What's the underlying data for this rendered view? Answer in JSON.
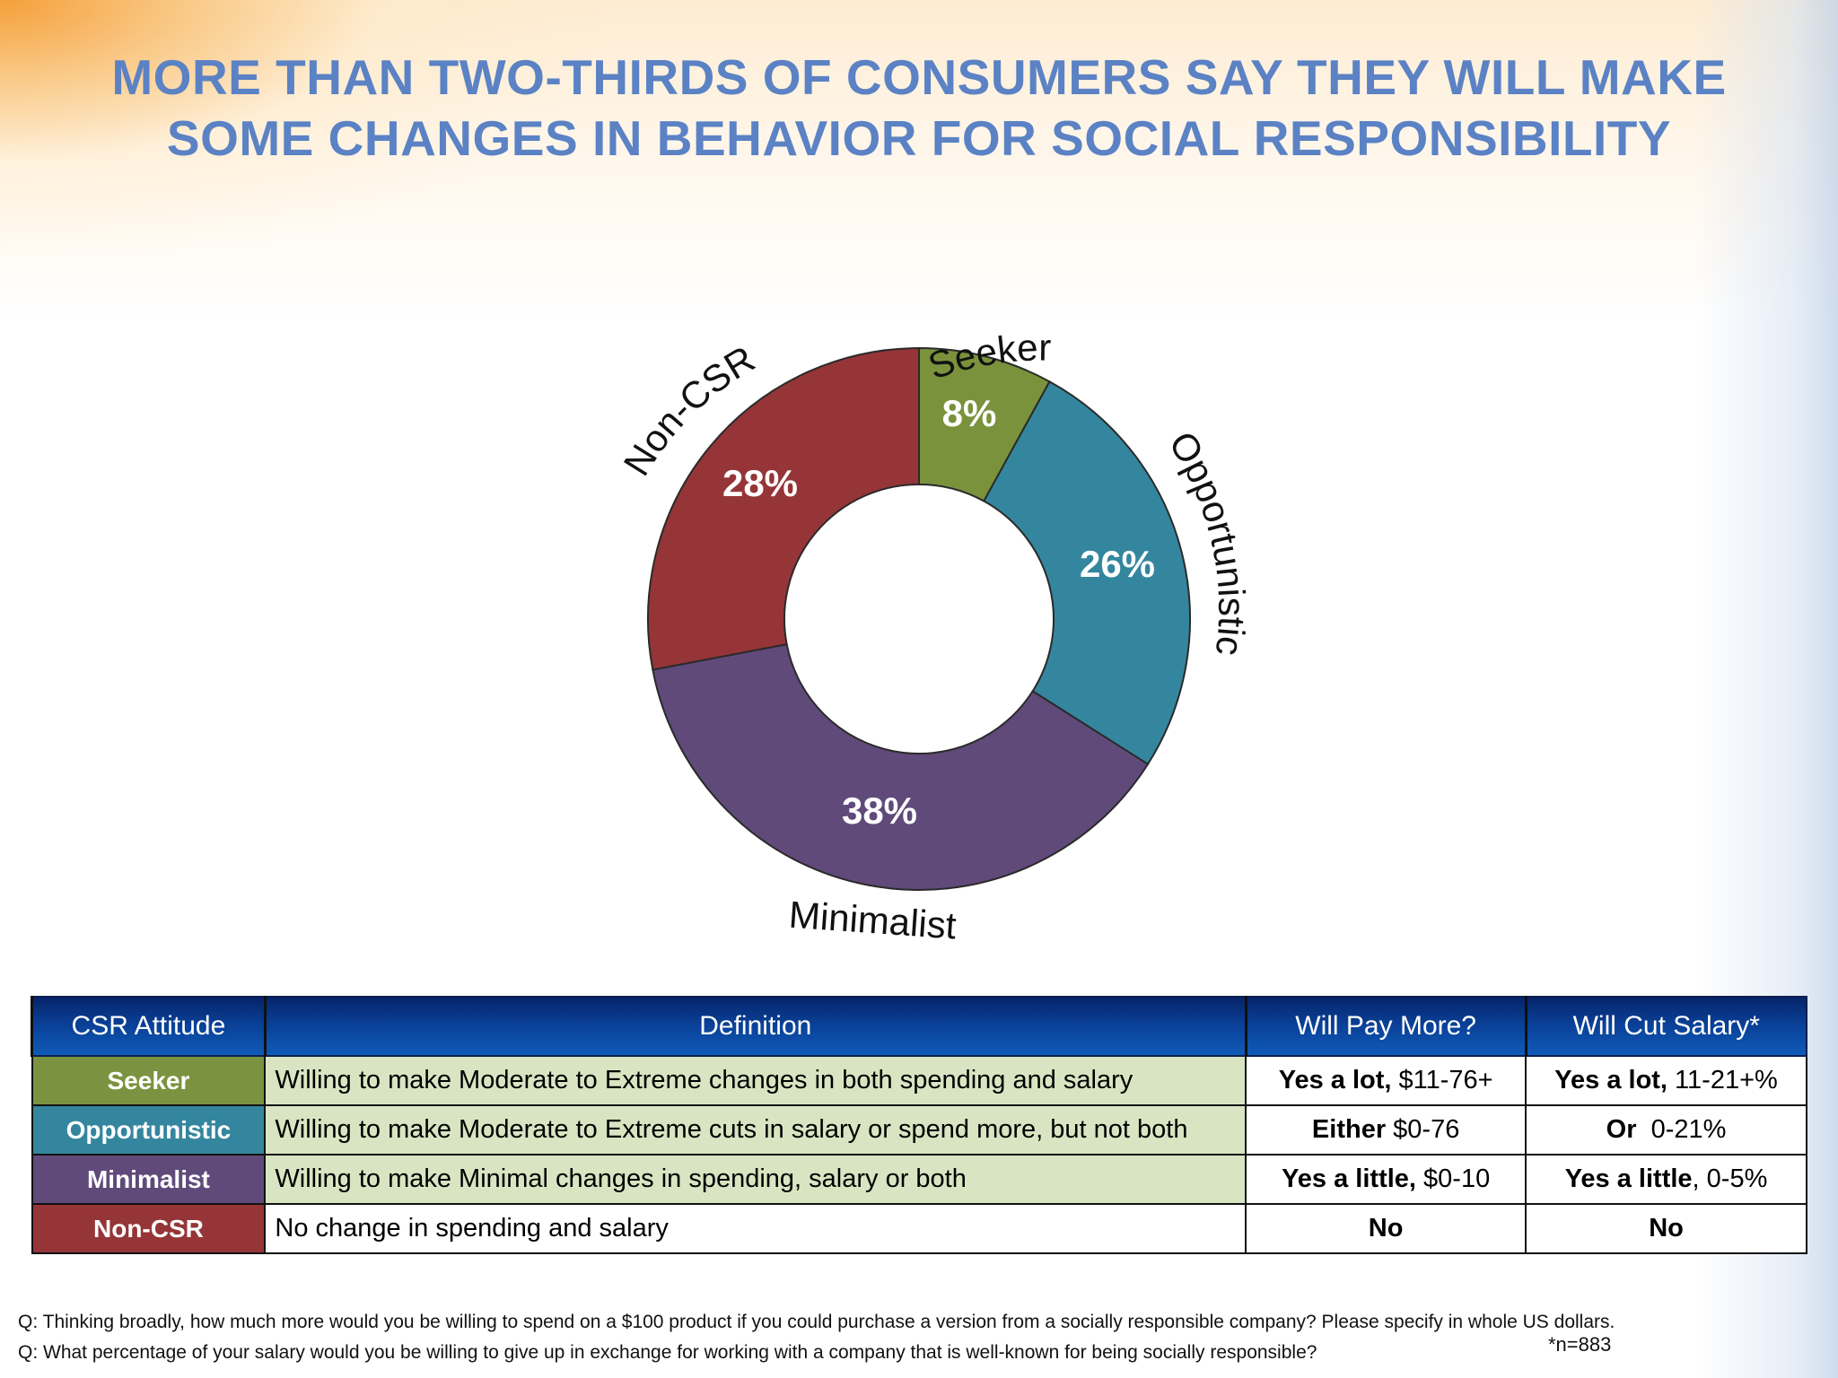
{
  "title_lines": [
    "MORE THAN TWO-THIRDS OF CONSUMERS SAY THEY WILL MAKE",
    "SOME CHANGES IN BEHAVIOR FOR SOCIAL RESPONSIBILITY"
  ],
  "chart_data": {
    "type": "pie",
    "subtype": "donut",
    "categories": [
      "Seeker",
      "Opportunistic",
      "Minimalist",
      "Non-CSR"
    ],
    "values": [
      8,
      26,
      38,
      28
    ],
    "value_labels": [
      "8%",
      "26%",
      "38%",
      "28%"
    ],
    "colors": [
      "#7a923c",
      "#34869e",
      "#604a7a",
      "#953537"
    ]
  },
  "table": {
    "headers": [
      "CSR Attitude",
      "Definition",
      "Will Pay More?",
      "Will Cut Salary*"
    ],
    "rows": [
      {
        "attitude": "Seeker",
        "color": "#7b9340",
        "definition": "Willing to make Moderate to Extreme changes in both spending and salary",
        "pay_bold": "Yes a lot,",
        "pay_rest": " $11-76+",
        "cut_bold": "Yes a lot,",
        "cut_rest": " 11-21+%",
        "row_bg": "#d9e5c2"
      },
      {
        "attitude": "Opportunistic",
        "color": "#34869e",
        "definition": "Willing to make Moderate to Extreme cuts in salary or spend more, but not both",
        "pay_bold": "Either",
        "pay_rest": " $0-76",
        "cut_bold": "Or",
        "cut_rest": "  0-21%",
        "row_bg": "#d9e5c2"
      },
      {
        "attitude": "Minimalist",
        "color": "#604a7a",
        "definition": "Willing to make Minimal changes in spending, salary or both",
        "pay_bold": "Yes a little,",
        "pay_rest": " $0-10",
        "cut_bold": "Yes a little",
        "cut_rest": ", 0-5%",
        "row_bg": "#d9e5c2"
      },
      {
        "attitude": "Non-CSR",
        "color": "#953537",
        "definition": "No change in spending and salary",
        "pay_bold": "No",
        "pay_rest": "",
        "cut_bold": "No",
        "cut_rest": "",
        "row_bg": "#ffffff"
      }
    ]
  },
  "footer": {
    "q1": "Q: Thinking broadly, how much more would you be willing to spend on a $100 product if you could purchase a version from a socially responsible company? Please specify in whole US dollars.",
    "q2": "Q: What percentage of your salary would you be willing to give up in exchange for working with a company that is well-known for being socially responsible?",
    "n": "*n=883"
  }
}
